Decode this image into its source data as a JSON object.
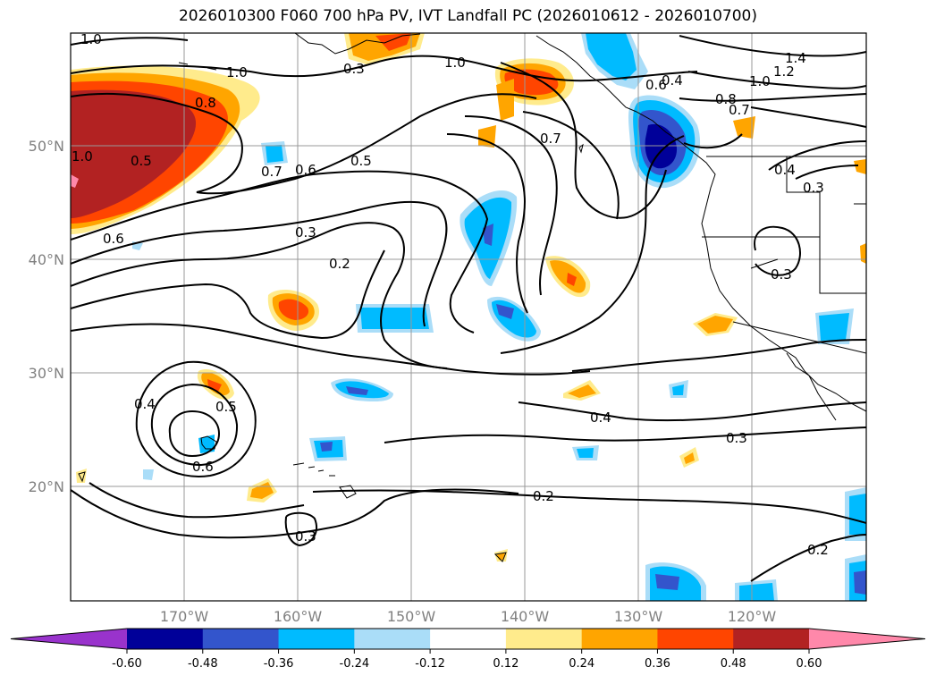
{
  "title": "2026010300 F060 700 hPa PV, IVT Landfall PC (2026010612 - 2026010700)",
  "lon_labels": [
    "170°W",
    "160°W",
    "150°W",
    "140°W",
    "130°W",
    "120°W"
  ],
  "lat_labels": [
    "50°N",
    "40°N",
    "30°N",
    "20°N"
  ],
  "contour_labels": [
    "1.0",
    "1.0",
    "1.0",
    "0.8",
    "0.5",
    "1.0",
    "0.7",
    "0.6",
    "0.5",
    "0.6",
    "0.3",
    "0.2",
    "0.7",
    "0.4",
    "0.4",
    "0.5",
    "0.6",
    "0.3",
    "0.4",
    "0.3",
    "0.2",
    "0.2",
    "0.3",
    "0.6",
    "0.8",
    "0.7",
    "1.0",
    "1.2",
    "1.4",
    "0.4",
    "0.3",
    "0.3"
  ],
  "colorbar": {
    "ticks": [
      "-0.60",
      "-0.48",
      "-0.36",
      "-0.24",
      "-0.12",
      "0.12",
      "0.24",
      "0.36",
      "0.48",
      "0.60"
    ],
    "colors": [
      "#9933cc",
      "#000099",
      "#3355cc",
      "#00bbff",
      "#aaddf8",
      "#ffffff",
      "#ffeb8c",
      "#ffa500",
      "#ff4500",
      "#b22222",
      "#ff88aa"
    ]
  }
}
